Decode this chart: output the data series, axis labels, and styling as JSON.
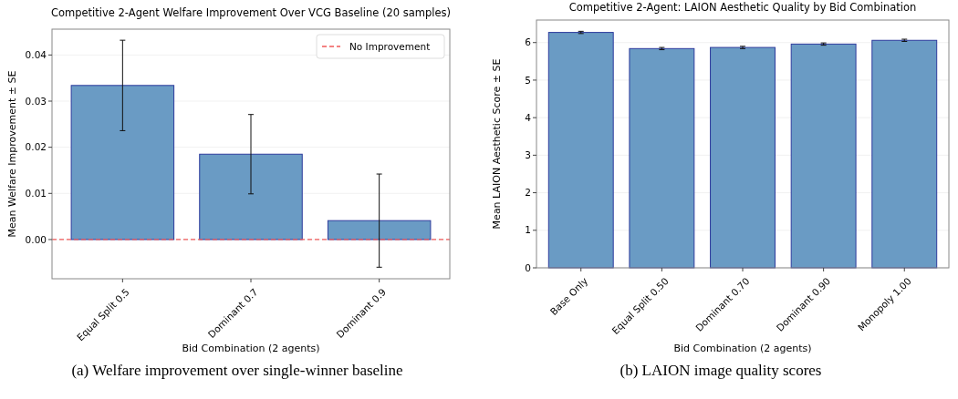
{
  "chart_data": [
    {
      "type": "bar",
      "title": "Competitive 2-Agent Welfare Improvement Over VCG Baseline (20 samples)",
      "xlabel": "Bid Combination (2 agents)",
      "ylabel": "Mean Welfare Improvement ± SE",
      "categories": [
        "Equal Split 0.5",
        "Dominant 0.7",
        "Dominant 0.9"
      ],
      "values": [
        0.0334,
        0.0185,
        0.0041
      ],
      "errors": [
        0.0098,
        0.0086,
        0.0101
      ],
      "color": "#6a9bc4",
      "ylim": [
        -0.0085,
        0.0456
      ],
      "yticks": [
        {
          "value": 0,
          "label": "0.00"
        },
        {
          "value": 0.01,
          "label": "0.01"
        },
        {
          "value": 0.02,
          "label": "0.02"
        },
        {
          "value": 0.03,
          "label": "0.03"
        },
        {
          "value": 0.04,
          "label": "0.04"
        }
      ],
      "ref_lines": [
        {
          "axis": "y",
          "value": 0,
          "label": "No Improvement",
          "color": "#f05a5a",
          "line_style": "dashed"
        }
      ],
      "grid": "y",
      "legend": "top right",
      "annotations": [
        "(a) Welfare improvement over single-winner baseline"
      ]
    },
    {
      "type": "bar",
      "title": "Competitive 2-Agent: LAION Aesthetic Quality by Bid Combination",
      "xlabel": "Bid Combination (2 agents)",
      "ylabel": "Mean LAION Aesthetic Score ± SE",
      "categories": [
        "Base Only",
        "Equal Split 0.50",
        "Dominant 0.70",
        "Dominant 0.90",
        "Monopoly 1.00"
      ],
      "values": [
        6.27,
        5.84,
        5.87,
        5.96,
        6.06
      ],
      "errors": [
        0.03,
        0.03,
        0.03,
        0.03,
        0.03
      ],
      "color": "#6a9bc4",
      "ylim": [
        0,
        6.6
      ],
      "yticks": [
        0,
        1,
        2,
        3,
        4,
        5,
        6
      ],
      "grid": "y",
      "annotations": [
        "(b) LAION image quality scores"
      ]
    }
  ]
}
